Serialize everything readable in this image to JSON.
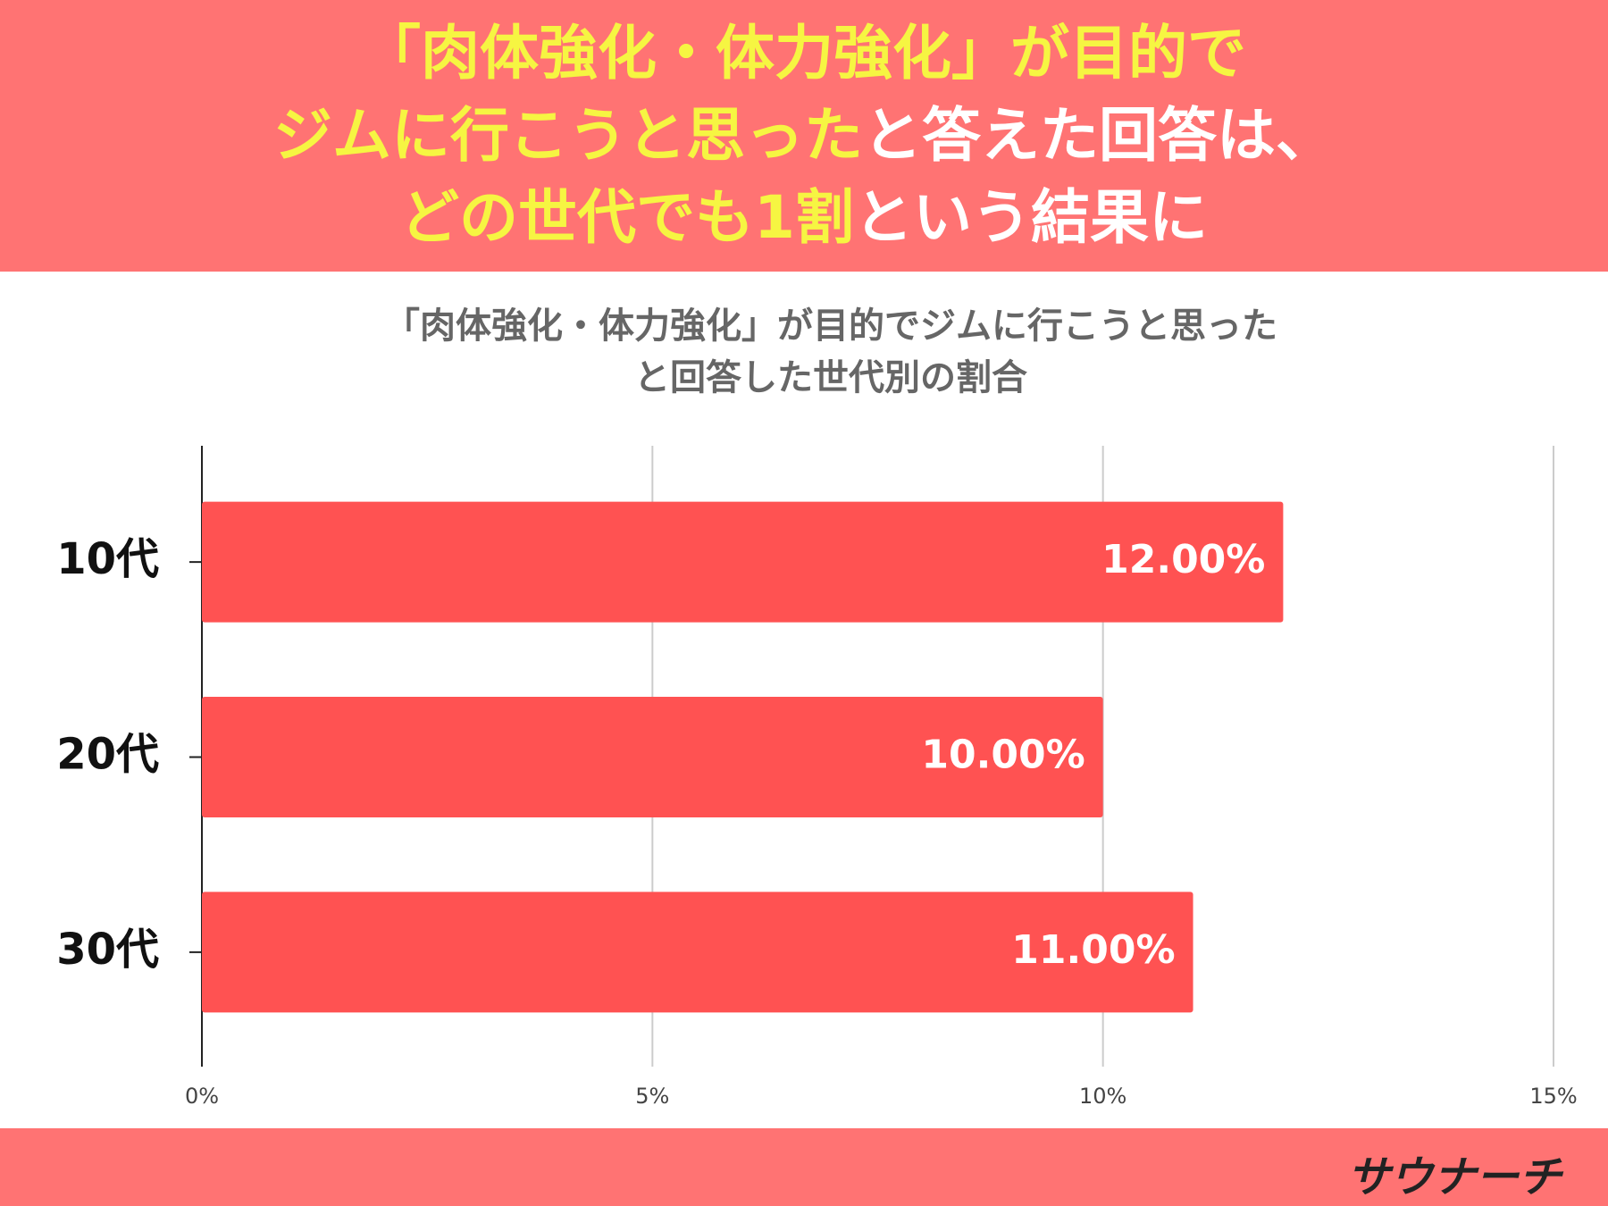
{
  "header": {
    "lines": [
      [
        {
          "text": "「肉体強化・体力強化」が目的で",
          "color": "#f6f542"
        }
      ],
      [
        {
          "text": "ジムに行こうと思った",
          "color": "#f6f542"
        },
        {
          "text": "と答えた回答は、",
          "color": "#ffffff"
        }
      ],
      [
        {
          "text": "どの世代でも1割",
          "color": "#f6f542"
        },
        {
          "text": "という結果に",
          "color": "#ffffff"
        }
      ]
    ],
    "background": "#ff7373"
  },
  "logo": "サウナーチ",
  "chart_data": {
    "type": "bar",
    "orientation": "horizontal",
    "title": [
      "「肉体強化・体力強化」が目的でジムに行こうと思った",
      "と回答した世代別の割合"
    ],
    "categories": [
      "10代",
      "20代",
      "30代"
    ],
    "values": [
      12,
      10,
      11
    ],
    "value_labels": [
      "12.00%",
      "10.00%",
      "11.00%"
    ],
    "color": "#ff5252",
    "xlim": [
      0,
      15
    ],
    "xticks": [
      {
        "value": 0,
        "label": "0%"
      },
      {
        "value": 5,
        "label": "5%"
      },
      {
        "value": 10,
        "label": "10%"
      },
      {
        "value": 15,
        "label": "15%"
      }
    ],
    "grid": true
  }
}
